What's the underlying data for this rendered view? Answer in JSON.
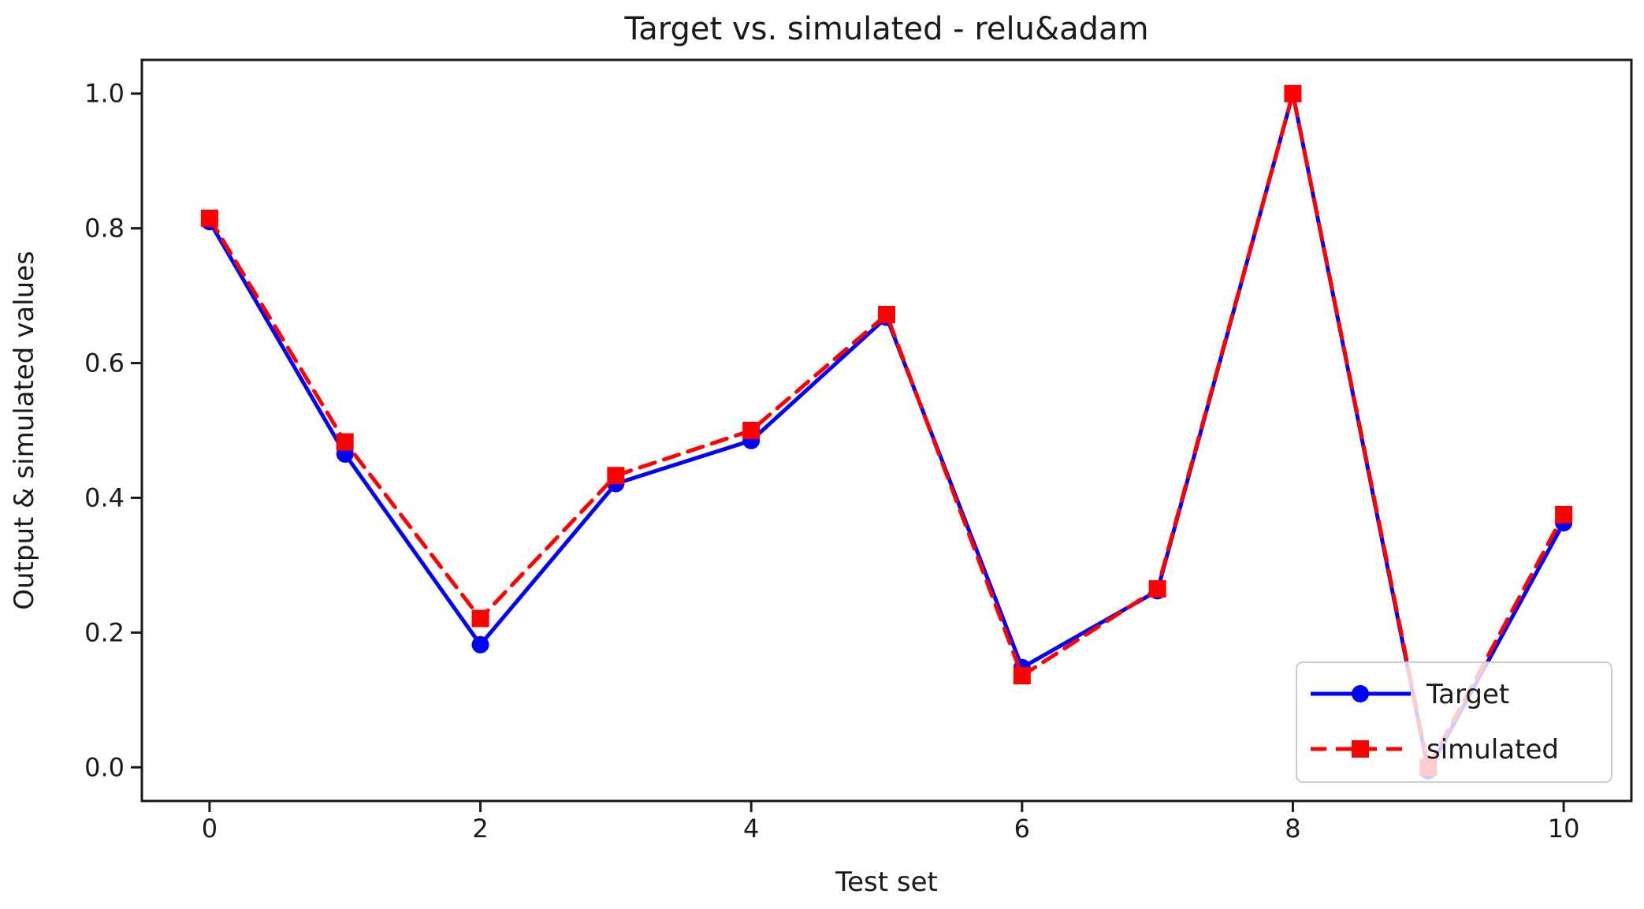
{
  "figure": {
    "background": "#ffffff",
    "axis_color": "#1a1a1a"
  },
  "chart_data": {
    "type": "line",
    "title": "Target vs. simulated - relu&adam",
    "xlabel": "Test set",
    "ylabel": "Output & simulated values",
    "x": [
      0,
      1,
      2,
      3,
      4,
      5,
      6,
      7,
      8,
      9,
      10
    ],
    "series": [
      {
        "name": "Target",
        "color": "#0000ff",
        "line_style": "solid",
        "marker": "circle",
        "values": [
          0.81,
          0.465,
          0.182,
          0.421,
          0.485,
          0.668,
          0.148,
          0.262,
          1.0,
          -0.005,
          0.363
        ]
      },
      {
        "name": "simulated",
        "color": "#ff0000",
        "line_style": "dashed",
        "marker": "square",
        "values": [
          0.815,
          0.483,
          0.221,
          0.433,
          0.5,
          0.672,
          0.136,
          0.265,
          1.0,
          0.0,
          0.375
        ]
      }
    ],
    "xlim": [
      -0.5,
      10.5
    ],
    "ylim": [
      -0.05,
      1.05
    ],
    "xticks": [
      "0",
      "2",
      "4",
      "6",
      "8",
      "10"
    ],
    "xtick_values": [
      0,
      2,
      4,
      6,
      8,
      10
    ],
    "yticks": [
      "0.0",
      "0.2",
      "0.4",
      "0.6",
      "0.8",
      "1.0"
    ],
    "ytick_values": [
      0.0,
      0.2,
      0.4,
      0.6,
      0.8,
      1.0
    ],
    "grid": false,
    "legend_position": "lower right",
    "legend_border_color": "#cccccc",
    "legend_background": "rgba(255,255,255,0.8)"
  }
}
